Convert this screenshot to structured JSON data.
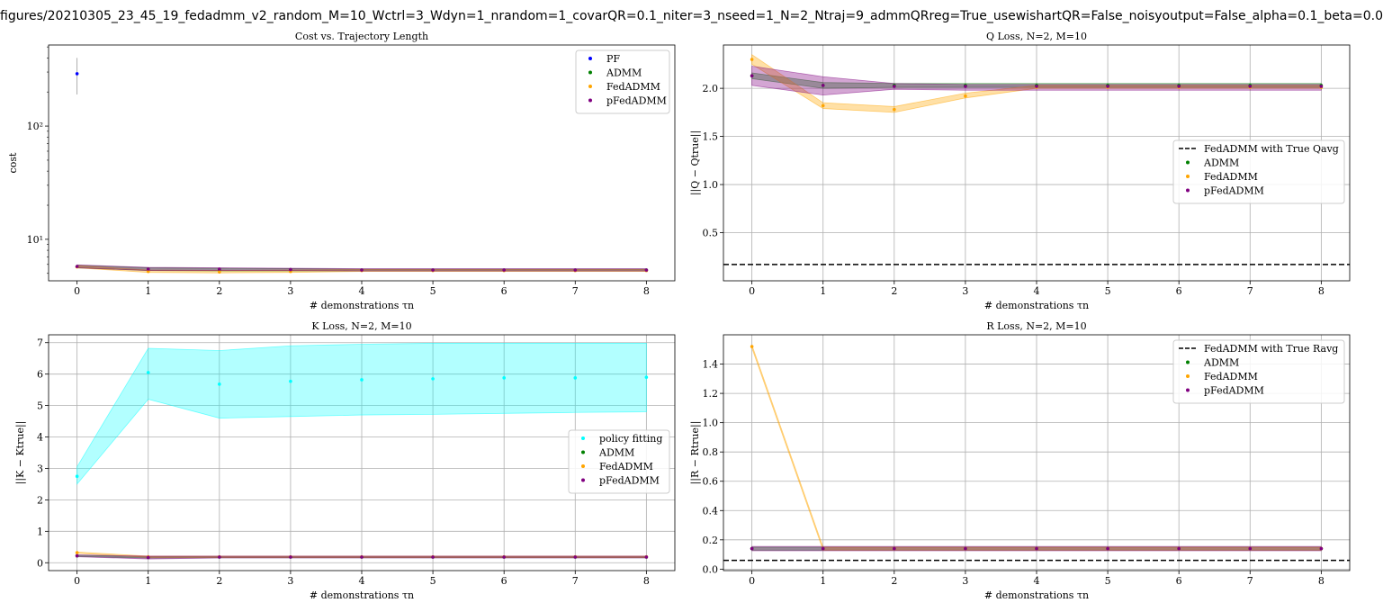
{
  "figure_title": "figures/20210305_23_45_19_fedadmm_v2_random_M=10_Wctrl=3_Wdyn=1_nrandom=1_covarQR=0.1_niter=3_nseed=1_N=2_Ntraj=9_admmQRreg=True_usewishartQR=False_noisyoutput=False_alpha=0.1_beta=0.0",
  "colors": {
    "PF": "#0000ff",
    "ADMM": "#008000",
    "FedADMM": "#ffa500",
    "pFedADMM": "#800080",
    "policy_fitting": "#00ffff",
    "true_line": "#000000",
    "grid": "#b0b0b0"
  },
  "chart_data": [
    {
      "type": "line",
      "title": "Cost vs. Trajectory Length",
      "xlabel": "# demonstrations τn",
      "ylabel": "cost",
      "yscale": "log",
      "ylim": [
        4.3,
        520
      ],
      "xlim": [
        -0.4,
        8.4
      ],
      "x": [
        0,
        1,
        2,
        3,
        4,
        5,
        6,
        7,
        8
      ],
      "yticks": [
        10,
        100
      ],
      "yticklabels": [
        "10¹",
        "10²"
      ],
      "legend_position": "upper right",
      "grid": false,
      "series": [
        {
          "name": "PF",
          "key": "PF",
          "values": [
            290,
            null,
            null,
            null,
            null,
            null,
            null,
            null,
            null
          ],
          "err_low": [
            190,
            null,
            null,
            null,
            null,
            null,
            null,
            null,
            null
          ],
          "err_high": [
            400,
            null,
            null,
            null,
            null,
            null,
            null,
            null,
            null
          ]
        },
        {
          "name": "ADMM",
          "key": "ADMM",
          "values": [
            5.75,
            5.45,
            5.4,
            5.4,
            5.35,
            5.35,
            5.35,
            5.35,
            5.35
          ],
          "band_low": [
            5.6,
            5.3,
            5.25,
            5.25,
            5.25,
            5.25,
            5.25,
            5.25,
            5.25
          ],
          "band_high": [
            5.9,
            5.6,
            5.55,
            5.5,
            5.45,
            5.45,
            5.45,
            5.45,
            5.45
          ]
        },
        {
          "name": "FedADMM",
          "key": "FedADMM",
          "values": [
            5.7,
            5.2,
            5.15,
            5.2,
            5.3,
            5.3,
            5.3,
            5.3,
            5.3
          ],
          "band_low": [
            5.6,
            5.1,
            5.05,
            5.1,
            5.2,
            5.2,
            5.2,
            5.2,
            5.2
          ],
          "band_high": [
            5.85,
            5.35,
            5.3,
            5.35,
            5.4,
            5.4,
            5.4,
            5.4,
            5.4
          ]
        },
        {
          "name": "pFedADMM",
          "key": "pFedADMM",
          "values": [
            5.75,
            5.45,
            5.45,
            5.4,
            5.35,
            5.35,
            5.35,
            5.35,
            5.35
          ],
          "band_low": [
            5.6,
            5.3,
            5.3,
            5.3,
            5.25,
            5.25,
            5.25,
            5.25,
            5.25
          ],
          "band_high": [
            5.95,
            5.65,
            5.6,
            5.55,
            5.5,
            5.5,
            5.5,
            5.5,
            5.5
          ]
        }
      ]
    },
    {
      "type": "line",
      "title": "Q Loss, N=2, M=10",
      "xlabel": "# demonstrations τn",
      "ylabel": "||Q − Qtrue||",
      "ylim": [
        0,
        2.45
      ],
      "yticks": [
        0.5,
        1.0,
        1.5,
        2.0
      ],
      "xlim": [
        -0.4,
        8.4
      ],
      "x": [
        0,
        1,
        2,
        3,
        4,
        5,
        6,
        7,
        8
      ],
      "legend_position": "center right",
      "grid": true,
      "hline": {
        "name": "FedADMM with True Qavg",
        "value": 0.17
      },
      "series": [
        {
          "name": "ADMM",
          "key": "ADMM",
          "values": [
            2.13,
            2.03,
            2.03,
            2.03,
            2.03,
            2.03,
            2.03,
            2.03,
            2.03
          ],
          "band_low": [
            2.1,
            2.0,
            2.01,
            2.01,
            2.01,
            2.01,
            2.01,
            2.01,
            2.01
          ],
          "band_high": [
            2.16,
            2.06,
            2.05,
            2.05,
            2.05,
            2.05,
            2.05,
            2.05,
            2.05
          ]
        },
        {
          "name": "FedADMM",
          "key": "FedADMM",
          "values": [
            2.3,
            1.82,
            1.78,
            1.92,
            2.01,
            2.01,
            2.01,
            2.01,
            2.01
          ],
          "band_low": [
            2.25,
            1.79,
            1.75,
            1.9,
            2.0,
            2.0,
            2.0,
            2.0,
            2.0
          ],
          "band_high": [
            2.35,
            1.85,
            1.81,
            1.95,
            2.03,
            2.03,
            2.03,
            2.03,
            2.03
          ]
        },
        {
          "name": "pFedADMM",
          "key": "pFedADMM",
          "values": [
            2.13,
            2.03,
            2.02,
            2.02,
            2.02,
            2.02,
            2.02,
            2.02,
            2.02
          ],
          "band_low": [
            2.03,
            1.93,
            1.99,
            1.98,
            1.98,
            1.98,
            1.98,
            1.98,
            1.98
          ],
          "band_high": [
            2.23,
            2.12,
            2.05,
            2.04,
            2.04,
            2.04,
            2.04,
            2.04,
            2.04
          ]
        }
      ]
    },
    {
      "type": "line",
      "title": "K Loss, N=2, M=10",
      "xlabel": "# demonstrations τn",
      "ylabel": "||K − Ktrue||",
      "ylim": [
        -0.25,
        7.25
      ],
      "yticks": [
        0,
        1,
        2,
        3,
        4,
        5,
        6,
        7
      ],
      "xlim": [
        -0.4,
        8.4
      ],
      "x": [
        0,
        1,
        2,
        3,
        4,
        5,
        6,
        7,
        8
      ],
      "legend_position": "center right",
      "grid": true,
      "series": [
        {
          "name": "policy fitting",
          "key": "policy_fitting",
          "values": [
            2.75,
            6.05,
            5.68,
            5.77,
            5.82,
            5.85,
            5.88,
            5.88,
            5.9
          ],
          "band_low": [
            2.5,
            5.2,
            4.6,
            4.65,
            4.7,
            4.72,
            4.75,
            4.78,
            4.8
          ],
          "band_high": [
            3.05,
            6.82,
            6.75,
            6.9,
            6.95,
            6.98,
            6.98,
            6.98,
            6.98
          ]
        },
        {
          "name": "ADMM",
          "key": "ADMM",
          "values": [
            0.22,
            0.17,
            0.18,
            0.18,
            0.18,
            0.18,
            0.18,
            0.18,
            0.18
          ],
          "band_low": [
            0.2,
            0.15,
            0.16,
            0.16,
            0.16,
            0.16,
            0.16,
            0.16,
            0.16
          ],
          "band_high": [
            0.24,
            0.19,
            0.2,
            0.2,
            0.2,
            0.2,
            0.2,
            0.2,
            0.2
          ]
        },
        {
          "name": "FedADMM",
          "key": "FedADMM",
          "values": [
            0.32,
            0.19,
            0.19,
            0.19,
            0.19,
            0.19,
            0.19,
            0.19,
            0.19
          ],
          "band_low": [
            0.3,
            0.17,
            0.17,
            0.17,
            0.17,
            0.17,
            0.17,
            0.17,
            0.17
          ],
          "band_high": [
            0.34,
            0.21,
            0.21,
            0.21,
            0.21,
            0.21,
            0.21,
            0.21,
            0.21
          ]
        },
        {
          "name": "pFedADMM",
          "key": "pFedADMM",
          "values": [
            0.22,
            0.17,
            0.18,
            0.18,
            0.18,
            0.18,
            0.18,
            0.18,
            0.18
          ],
          "band_low": [
            0.19,
            0.12,
            0.15,
            0.15,
            0.15,
            0.15,
            0.15,
            0.15,
            0.15
          ],
          "band_high": [
            0.25,
            0.21,
            0.21,
            0.21,
            0.21,
            0.21,
            0.21,
            0.21,
            0.21
          ]
        }
      ]
    },
    {
      "type": "line",
      "title": "R Loss, N=2, M=10",
      "xlabel": "# demonstrations τn",
      "ylabel": "||R − Rtrue||",
      "ylim": [
        -0.01,
        1.6
      ],
      "yticks": [
        0.0,
        0.2,
        0.4,
        0.6,
        0.8,
        1.0,
        1.2,
        1.4
      ],
      "xlim": [
        -0.4,
        8.4
      ],
      "x": [
        0,
        1,
        2,
        3,
        4,
        5,
        6,
        7,
        8
      ],
      "legend_position": "upper right",
      "grid": true,
      "hline": {
        "name": "FedADMM with True Ravg",
        "value": 0.06
      },
      "series": [
        {
          "name": "ADMM",
          "key": "ADMM",
          "values": [
            0.14,
            0.14,
            0.14,
            0.14,
            0.14,
            0.14,
            0.14,
            0.14,
            0.14
          ],
          "band_low": [
            0.13,
            0.13,
            0.13,
            0.13,
            0.13,
            0.13,
            0.13,
            0.13,
            0.13
          ],
          "band_high": [
            0.15,
            0.15,
            0.15,
            0.15,
            0.15,
            0.15,
            0.15,
            0.15,
            0.15
          ]
        },
        {
          "name": "FedADMM",
          "key": "FedADMM",
          "values": [
            1.52,
            0.14,
            0.14,
            0.14,
            0.14,
            0.14,
            0.14,
            0.14,
            0.14
          ],
          "band_low": [
            1.51,
            0.13,
            0.13,
            0.13,
            0.13,
            0.13,
            0.13,
            0.13,
            0.13
          ],
          "band_high": [
            1.53,
            0.15,
            0.15,
            0.15,
            0.15,
            0.15,
            0.15,
            0.15,
            0.15
          ]
        },
        {
          "name": "pFedADMM",
          "key": "pFedADMM",
          "values": [
            0.14,
            0.14,
            0.14,
            0.14,
            0.14,
            0.14,
            0.14,
            0.14,
            0.14
          ],
          "band_low": [
            0.125,
            0.125,
            0.125,
            0.125,
            0.125,
            0.125,
            0.125,
            0.125,
            0.125
          ],
          "band_high": [
            0.155,
            0.155,
            0.155,
            0.155,
            0.155,
            0.155,
            0.155,
            0.155,
            0.155
          ]
        }
      ]
    }
  ]
}
